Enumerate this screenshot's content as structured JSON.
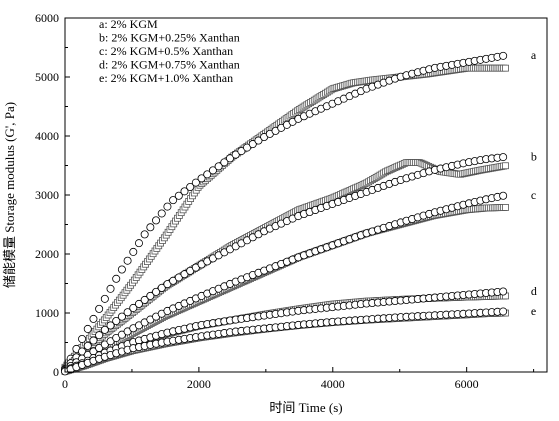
{
  "chart_data": {
    "type": "scatter",
    "title": "",
    "xlabel": "时间 Time (s)",
    "ylabel": "储能模量 Storage modulus (G', Pa)",
    "xlim": [
      0,
      7200
    ],
    "ylim": [
      0,
      6000
    ],
    "x_ticks": [
      0,
      2000,
      4000,
      6000
    ],
    "y_ticks": [
      0,
      1000,
      2000,
      3000,
      4000,
      5000,
      6000
    ],
    "grid": false,
    "legend_position": "top-left",
    "legend": [
      "a: 2% KGM",
      "b: 2% KGM+0.25% Xanthan",
      "c: 2% KGM+0.5% Xanthan",
      "d: 2% KGM+0.75% Xanthan",
      "e: 2% KGM+1.0% Xanthan"
    ],
    "marker_styles": {
      "square": "#555555",
      "circle": "#ffffff"
    },
    "series": [
      {
        "name": "a",
        "marker": "square",
        "x": [
          0,
          300,
          600,
          1000,
          1500,
          2000,
          2500,
          3000,
          3500,
          4000,
          4300,
          4600,
          5000,
          5400,
          5700,
          6000,
          6300,
          6600
        ],
        "y": [
          80,
          480,
          900,
          1500,
          2300,
          3150,
          3650,
          4050,
          4450,
          4800,
          4900,
          4950,
          5000,
          5050,
          5100,
          5150,
          5150,
          5150
        ]
      },
      {
        "name": "a",
        "marker": "circle",
        "x": [
          0,
          200,
          500,
          800,
          1200,
          1600,
          2000,
          2500,
          3000,
          3500,
          4000,
          4500,
          5000,
          5500,
          6000,
          6400,
          6600
        ],
        "y": [
          60,
          450,
          1050,
          1650,
          2350,
          2900,
          3250,
          3650,
          4000,
          4300,
          4550,
          4800,
          5000,
          5150,
          5250,
          5330,
          5370
        ]
      },
      {
        "name": "b",
        "marker": "square",
        "x": [
          0,
          300,
          600,
          1000,
          1500,
          2000,
          2500,
          3000,
          3500,
          4000,
          4500,
          4800,
          5100,
          5300,
          5600,
          5900,
          6200,
          6600
        ],
        "y": [
          60,
          350,
          650,
          1000,
          1450,
          1800,
          2150,
          2450,
          2750,
          2950,
          3200,
          3400,
          3550,
          3550,
          3400,
          3350,
          3420,
          3500
        ]
      },
      {
        "name": "b",
        "marker": "circle",
        "x": [
          0,
          300,
          600,
          1000,
          1500,
          2000,
          2500,
          3000,
          3500,
          4000,
          4500,
          5000,
          5500,
          6000,
          6300,
          6600
        ],
        "y": [
          50,
          400,
          720,
          1070,
          1470,
          1800,
          2100,
          2400,
          2650,
          2850,
          3050,
          3250,
          3420,
          3550,
          3610,
          3650
        ]
      },
      {
        "name": "c",
        "marker": "square",
        "x": [
          0,
          300,
          600,
          1000,
          1500,
          2000,
          2500,
          3000,
          3500,
          4000,
          4500,
          5000,
          5500,
          6000,
          6300,
          6600
        ],
        "y": [
          40,
          180,
          380,
          650,
          950,
          1200,
          1450,
          1700,
          1950,
          2150,
          2350,
          2500,
          2650,
          2750,
          2780,
          2790
        ]
      },
      {
        "name": "c",
        "marker": "circle",
        "x": [
          0,
          300,
          600,
          1000,
          1500,
          2000,
          2500,
          3000,
          3500,
          4000,
          4500,
          5000,
          5500,
          6000,
          6300,
          6600
        ],
        "y": [
          40,
          260,
          470,
          730,
          1020,
          1270,
          1510,
          1730,
          1950,
          2150,
          2350,
          2530,
          2700,
          2850,
          2930,
          3000
        ]
      },
      {
        "name": "d",
        "marker": "square",
        "x": [
          0,
          300,
          600,
          1000,
          1500,
          2000,
          2500,
          3000,
          3500,
          4000,
          4500,
          5000,
          5500,
          6000,
          6300,
          6600
        ],
        "y": [
          20,
          150,
          300,
          480,
          640,
          780,
          880,
          980,
          1070,
          1150,
          1200,
          1230,
          1250,
          1270,
          1280,
          1290
        ]
      },
      {
        "name": "d",
        "marker": "circle",
        "x": [
          0,
          300,
          600,
          1000,
          1500,
          2000,
          2500,
          3000,
          3500,
          4000,
          4500,
          5000,
          5500,
          6000,
          6300,
          6600
        ],
        "y": [
          20,
          170,
          330,
          500,
          660,
          790,
          880,
          960,
          1040,
          1100,
          1160,
          1210,
          1260,
          1310,
          1340,
          1370
        ]
      },
      {
        "name": "e",
        "marker": "square",
        "x": [
          0,
          300,
          600,
          1000,
          1500,
          2000,
          2500,
          3000,
          3500,
          4000,
          4500,
          5000,
          5500,
          6000,
          6300,
          6600
        ],
        "y": [
          10,
          110,
          230,
          360,
          480,
          580,
          660,
          730,
          790,
          840,
          880,
          910,
          940,
          970,
          990,
          1000
        ]
      },
      {
        "name": "e",
        "marker": "circle",
        "x": [
          0,
          300,
          600,
          1000,
          1500,
          2000,
          2500,
          3000,
          3500,
          4000,
          4500,
          5000,
          5500,
          6000,
          6300,
          6600
        ],
        "y": [
          10,
          140,
          260,
          400,
          510,
          600,
          680,
          740,
          800,
          850,
          890,
          930,
          960,
          990,
          1010,
          1030
        ]
      }
    ]
  }
}
